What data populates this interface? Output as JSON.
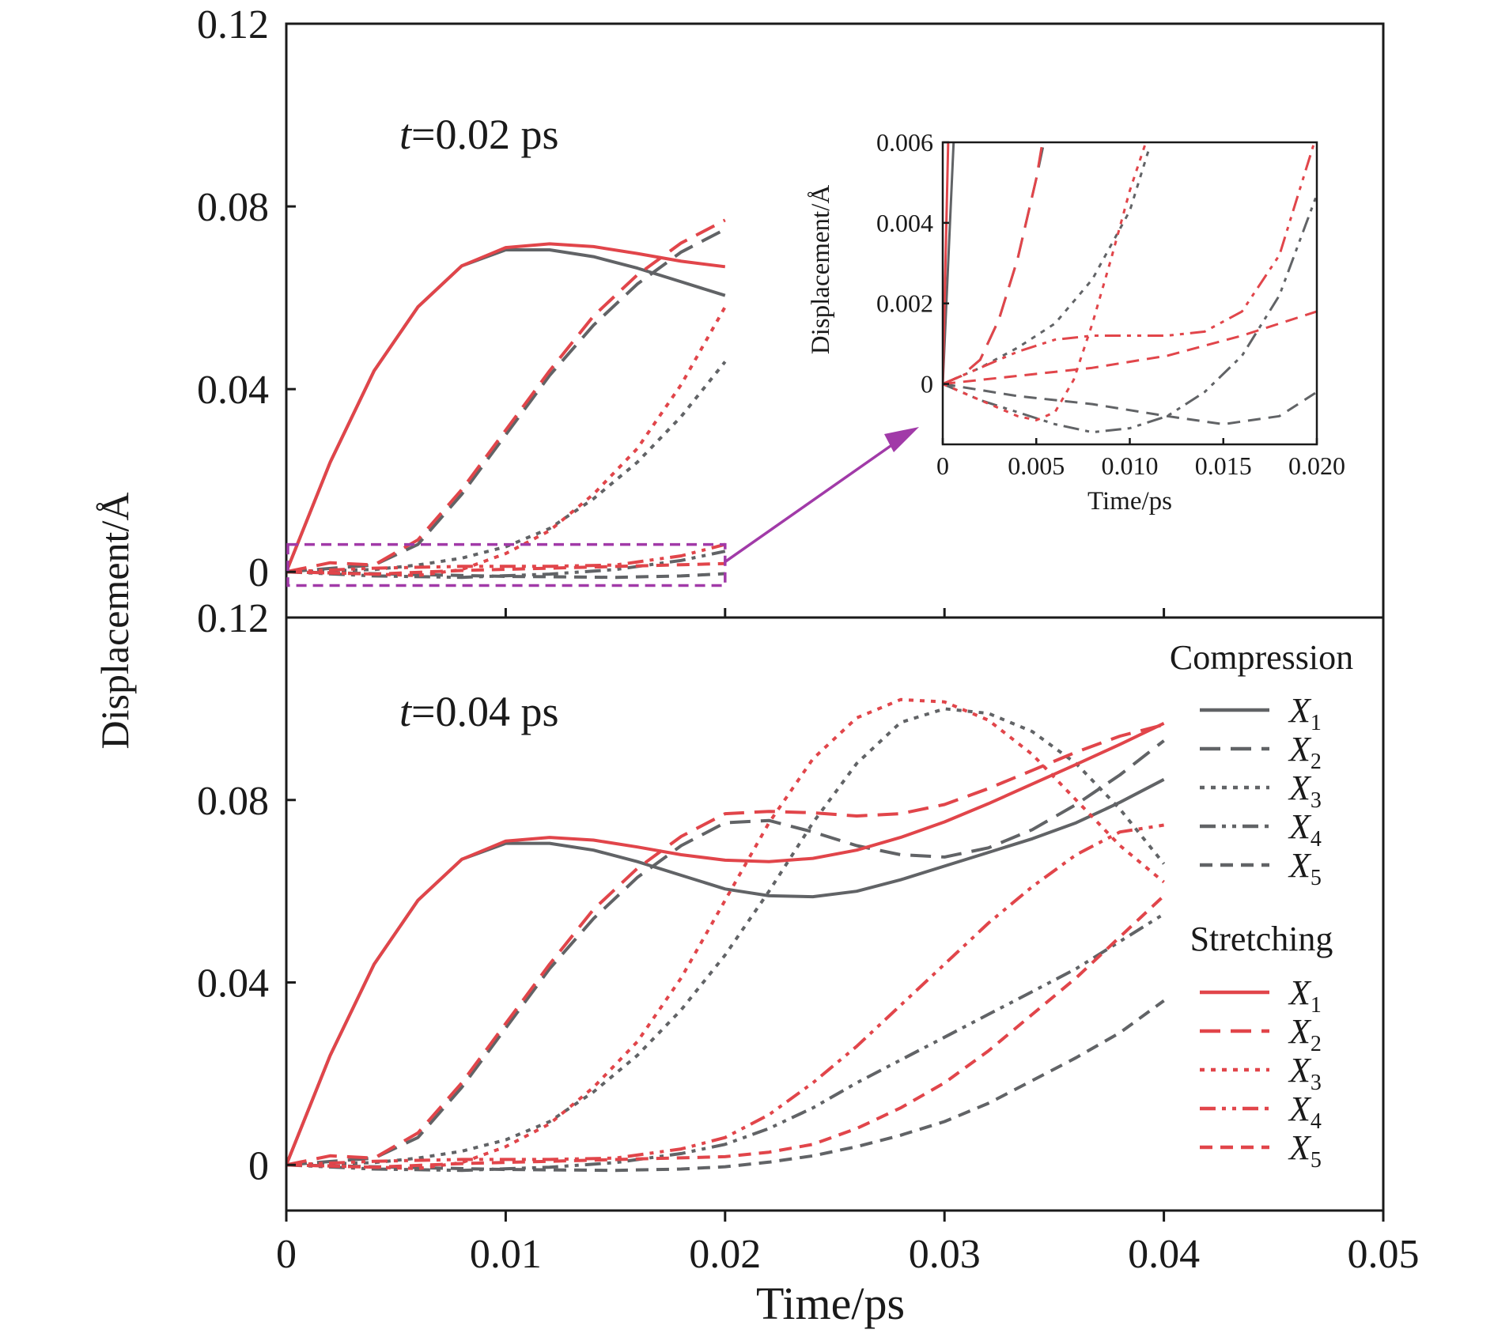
{
  "figure": {
    "ylabel": "Displacement/Å",
    "xlabel": "Time/ps"
  },
  "colors": {
    "compression": "#616366",
    "stretching": "#e1454a",
    "zoom_box": "#a13aa8",
    "axis": "#1a1a1a"
  },
  "legend": {
    "compression_title": "Compression",
    "stretching_title": "Stretching",
    "items": [
      {
        "label": "X",
        "sub": "1",
        "dash": "solid"
      },
      {
        "label": "X",
        "sub": "2",
        "dash": "long-dash"
      },
      {
        "label": "X",
        "sub": "3",
        "dash": "dot"
      },
      {
        "label": "X",
        "sub": "4",
        "dash": "dash-dot-dot"
      },
      {
        "label": "X",
        "sub": "5",
        "dash": "dash"
      }
    ]
  },
  "chart_data": [
    {
      "type": "line",
      "panel": "top",
      "annotation": {
        "italic": "t",
        "text": "=0.02 ps"
      },
      "xlim": [
        0,
        0.05
      ],
      "ylim": [
        -0.01,
        0.12
      ],
      "xticks": [
        0,
        0.01,
        0.02,
        0.03,
        0.04,
        0.05
      ],
      "yticks": [
        0,
        0.04,
        0.08,
        0.12
      ],
      "ytick_labels": [
        "0",
        "0.04",
        "0.08",
        "0.12"
      ],
      "zoom_box": {
        "x": [
          0,
          0.02
        ],
        "y": [
          -0.003,
          0.006
        ]
      },
      "series": [
        {
          "group": "compression",
          "label": "X1",
          "x": [
            0,
            0.002,
            0.004,
            0.006,
            0.008,
            0.01,
            0.012,
            0.014,
            0.016,
            0.018,
            0.02
          ],
          "y": [
            0,
            0.024,
            0.044,
            0.058,
            0.067,
            0.0705,
            0.0705,
            0.069,
            0.0665,
            0.0635,
            0.0605
          ]
        },
        {
          "group": "compression",
          "label": "X2",
          "x": [
            0,
            0.004,
            0.006,
            0.008,
            0.01,
            0.012,
            0.014,
            0.016,
            0.018,
            0.02
          ],
          "y": [
            0,
            0.0015,
            0.006,
            0.017,
            0.03,
            0.043,
            0.054,
            0.063,
            0.07,
            0.075
          ]
        },
        {
          "group": "compression",
          "label": "X3",
          "x": [
            0,
            0.004,
            0.006,
            0.008,
            0.01,
            0.012,
            0.014,
            0.016,
            0.018,
            0.02
          ],
          "y": [
            0,
            0.0005,
            0.0015,
            0.003,
            0.0055,
            0.0095,
            0.016,
            0.024,
            0.034,
            0.046
          ]
        },
        {
          "group": "compression",
          "label": "X4",
          "x": [
            0,
            0.004,
            0.008,
            0.012,
            0.015,
            0.018,
            0.02
          ],
          "y": [
            0,
            -0.0009,
            -0.0012,
            -0.0005,
            0.0005,
            0.0025,
            0.0045
          ]
        },
        {
          "group": "compression",
          "label": "X5",
          "x": [
            0,
            0.005,
            0.01,
            0.015,
            0.018,
            0.02
          ],
          "y": [
            0,
            -0.0005,
            -0.001,
            -0.0012,
            -0.0009,
            -0.0004
          ]
        },
        {
          "group": "stretching",
          "label": "X1",
          "x": [
            0,
            0.002,
            0.004,
            0.006,
            0.008,
            0.01,
            0.012,
            0.014,
            0.016,
            0.018,
            0.02
          ],
          "y": [
            0,
            0.024,
            0.044,
            0.058,
            0.067,
            0.071,
            0.0718,
            0.0712,
            0.0697,
            0.068,
            0.0668
          ]
        },
        {
          "group": "stretching",
          "label": "X2",
          "x": [
            0,
            0.002,
            0.004,
            0.006,
            0.008,
            0.01,
            0.012,
            0.014,
            0.016,
            0.018,
            0.02
          ],
          "y": [
            0,
            0.002,
            0.0015,
            0.007,
            0.018,
            0.031,
            0.044,
            0.056,
            0.065,
            0.072,
            0.077
          ]
        },
        {
          "group": "stretching",
          "label": "X3",
          "x": [
            0,
            0.004,
            0.006,
            0.008,
            0.01,
            0.012,
            0.014,
            0.016,
            0.018,
            0.02
          ],
          "y": [
            0,
            -0.0005,
            -0.0008,
            0.0005,
            0.004,
            0.009,
            0.017,
            0.027,
            0.041,
            0.058
          ]
        },
        {
          "group": "stretching",
          "label": "X4",
          "x": [
            0,
            0.004,
            0.008,
            0.012,
            0.015,
            0.018,
            0.02
          ],
          "y": [
            0,
            0.0008,
            0.0012,
            0.0012,
            0.0015,
            0.0035,
            0.006
          ]
        },
        {
          "group": "stretching",
          "label": "X5",
          "x": [
            0,
            0.004,
            0.008,
            0.012,
            0.016,
            0.02
          ],
          "y": [
            0,
            -0.0005,
            0.0003,
            0.0008,
            0.0013,
            0.0018
          ]
        }
      ]
    },
    {
      "type": "line",
      "panel": "inset",
      "xlabel": "Time/ps",
      "ylabel": "Displacement/Å",
      "xlim": [
        0,
        0.02
      ],
      "ylim": [
        -0.0015,
        0.006
      ],
      "xticks": [
        0,
        0.005,
        0.01,
        0.015,
        0.02
      ],
      "xtick_labels": [
        "0",
        "0.005",
        "0.010",
        "0.015",
        "0.020"
      ],
      "yticks": [
        0,
        0.002,
        0.004,
        0.006
      ],
      "ytick_labels": [
        "0",
        "0.002",
        "0.004",
        "0.006"
      ],
      "series": [
        {
          "group": "compression",
          "label": "X1",
          "x": [
            0,
            0.0006
          ],
          "y": [
            0,
            0.0062
          ]
        },
        {
          "group": "compression",
          "label": "X2",
          "x": [
            0,
            0.001,
            0.002,
            0.003,
            0.004,
            0.005,
            0.0055
          ],
          "y": [
            0,
            0.0002,
            0.0006,
            0.0016,
            0.0031,
            0.0051,
            0.0062
          ]
        },
        {
          "group": "compression",
          "label": "X3",
          "x": [
            0,
            0.002,
            0.004,
            0.006,
            0.008,
            0.01,
            0.011
          ],
          "y": [
            0,
            0.0004,
            0.0009,
            0.0015,
            0.0026,
            0.0043,
            0.0058
          ]
        },
        {
          "group": "compression",
          "label": "X4",
          "x": [
            0,
            0.002,
            0.004,
            0.006,
            0.008,
            0.01,
            0.012,
            0.014,
            0.016,
            0.018,
            0.02
          ],
          "y": [
            0,
            -0.0004,
            -0.0007,
            -0.001,
            -0.0012,
            -0.0011,
            -0.0008,
            -0.0002,
            0.0007,
            0.0022,
            0.0047
          ]
        },
        {
          "group": "compression",
          "label": "X5",
          "x": [
            0,
            0.004,
            0.008,
            0.012,
            0.015,
            0.018,
            0.02
          ],
          "y": [
            0,
            -0.0003,
            -0.0005,
            -0.0008,
            -0.001,
            -0.0008,
            -0.0002
          ]
        },
        {
          "group": "stretching",
          "label": "X1",
          "x": [
            0,
            0.0003
          ],
          "y": [
            0,
            0.0062
          ]
        },
        {
          "group": "stretching",
          "label": "X2",
          "x": [
            0,
            0.001,
            0.002,
            0.003,
            0.004,
            0.005,
            0.0054
          ],
          "y": [
            0,
            0.0002,
            0.0006,
            0.0016,
            0.0031,
            0.0051,
            0.0062
          ]
        },
        {
          "group": "stretching",
          "label": "X3",
          "x": [
            0,
            0.002,
            0.004,
            0.005,
            0.006,
            0.007,
            0.008,
            0.009,
            0.01,
            0.011
          ],
          "y": [
            0,
            -0.0004,
            -0.0008,
            -0.0009,
            -0.0007,
            0.0001,
            0.0015,
            0.0031,
            0.0048,
            0.0062
          ]
        },
        {
          "group": "stretching",
          "label": "X4",
          "x": [
            0,
            0.002,
            0.004,
            0.006,
            0.008,
            0.01,
            0.012,
            0.014,
            0.016,
            0.018,
            0.02
          ],
          "y": [
            0,
            0.0004,
            0.0008,
            0.0011,
            0.0012,
            0.0012,
            0.0012,
            0.0013,
            0.0018,
            0.0032,
            0.0062
          ]
        },
        {
          "group": "stretching",
          "label": "X5",
          "x": [
            0,
            0.004,
            0.008,
            0.012,
            0.016,
            0.02
          ],
          "y": [
            0,
            0.0002,
            0.0004,
            0.0007,
            0.0012,
            0.0018
          ]
        }
      ]
    },
    {
      "type": "line",
      "panel": "bottom",
      "annotation": {
        "italic": "t",
        "text": "=0.04 ps"
      },
      "xlim": [
        0,
        0.05
      ],
      "ylim": [
        -0.01,
        0.12
      ],
      "xticks": [
        0,
        0.01,
        0.02,
        0.03,
        0.04,
        0.05
      ],
      "xtick_labels": [
        "0",
        "0.01",
        "0.02",
        "0.03",
        "0.04",
        "0.05"
      ],
      "yticks": [
        0,
        0.04,
        0.08,
        0.12
      ],
      "ytick_labels": [
        "0",
        "0.04",
        "0.08",
        "0.12"
      ],
      "series": [
        {
          "group": "compression",
          "label": "X1",
          "x": [
            0,
            0.002,
            0.004,
            0.006,
            0.008,
            0.01,
            0.012,
            0.014,
            0.016,
            0.018,
            0.02,
            0.022,
            0.024,
            0.026,
            0.028,
            0.03,
            0.032,
            0.034,
            0.036,
            0.038,
            0.04
          ],
          "y": [
            0,
            0.024,
            0.044,
            0.058,
            0.067,
            0.0705,
            0.0705,
            0.069,
            0.0665,
            0.0635,
            0.0605,
            0.059,
            0.0588,
            0.06,
            0.0625,
            0.0655,
            0.0685,
            0.0715,
            0.075,
            0.0795,
            0.0845
          ]
        },
        {
          "group": "compression",
          "label": "X2",
          "x": [
            0,
            0.004,
            0.006,
            0.008,
            0.01,
            0.012,
            0.014,
            0.016,
            0.018,
            0.02,
            0.022,
            0.024,
            0.026,
            0.028,
            0.03,
            0.032,
            0.034,
            0.036,
            0.038,
            0.04
          ],
          "y": [
            0,
            0.0015,
            0.006,
            0.017,
            0.03,
            0.043,
            0.054,
            0.063,
            0.07,
            0.075,
            0.0755,
            0.073,
            0.07,
            0.068,
            0.0675,
            0.0695,
            0.0735,
            0.079,
            0.0855,
            0.093
          ]
        },
        {
          "group": "compression",
          "label": "X3",
          "x": [
            0,
            0.004,
            0.006,
            0.008,
            0.01,
            0.012,
            0.014,
            0.016,
            0.018,
            0.02,
            0.022,
            0.024,
            0.026,
            0.028,
            0.03,
            0.032,
            0.034,
            0.036,
            0.038,
            0.04
          ],
          "y": [
            0,
            0.0005,
            0.0015,
            0.003,
            0.0055,
            0.0095,
            0.016,
            0.024,
            0.034,
            0.046,
            0.06,
            0.075,
            0.088,
            0.097,
            0.1,
            0.099,
            0.095,
            0.088,
            0.078,
            0.066
          ]
        },
        {
          "group": "compression",
          "label": "X4",
          "x": [
            0,
            0.004,
            0.008,
            0.012,
            0.015,
            0.018,
            0.02,
            0.022,
            0.024,
            0.026,
            0.028,
            0.03,
            0.032,
            0.034,
            0.036,
            0.038,
            0.04
          ],
          "y": [
            0,
            -0.0009,
            -0.0012,
            -0.0005,
            0.0005,
            0.0025,
            0.0045,
            0.008,
            0.0125,
            0.018,
            0.023,
            0.028,
            0.033,
            0.038,
            0.043,
            0.049,
            0.055
          ]
        },
        {
          "group": "compression",
          "label": "X5",
          "x": [
            0,
            0.005,
            0.01,
            0.015,
            0.018,
            0.02,
            0.022,
            0.024,
            0.026,
            0.028,
            0.03,
            0.032,
            0.034,
            0.036,
            0.038,
            0.04
          ],
          "y": [
            0,
            -0.0005,
            -0.001,
            -0.0012,
            -0.0009,
            -0.0004,
            0.0006,
            0.002,
            0.004,
            0.0065,
            0.0095,
            0.0135,
            0.0185,
            0.0235,
            0.029,
            0.036
          ]
        },
        {
          "group": "stretching",
          "label": "X1",
          "x": [
            0,
            0.002,
            0.004,
            0.006,
            0.008,
            0.01,
            0.012,
            0.014,
            0.016,
            0.018,
            0.02,
            0.022,
            0.024,
            0.026,
            0.028,
            0.03,
            0.032,
            0.034,
            0.036,
            0.038,
            0.04
          ],
          "y": [
            0,
            0.024,
            0.044,
            0.058,
            0.067,
            0.071,
            0.0718,
            0.0712,
            0.0697,
            0.068,
            0.0668,
            0.0665,
            0.0672,
            0.069,
            0.0718,
            0.0752,
            0.0792,
            0.0835,
            0.0878,
            0.0922,
            0.0968
          ]
        },
        {
          "group": "stretching",
          "label": "X2",
          "x": [
            0,
            0.002,
            0.004,
            0.006,
            0.008,
            0.01,
            0.012,
            0.014,
            0.016,
            0.018,
            0.02,
            0.022,
            0.024,
            0.026,
            0.028,
            0.03,
            0.032,
            0.034,
            0.036,
            0.038,
            0.04
          ],
          "y": [
            0,
            0.002,
            0.0015,
            0.007,
            0.018,
            0.031,
            0.044,
            0.056,
            0.065,
            0.072,
            0.077,
            0.0775,
            0.0772,
            0.0765,
            0.077,
            0.079,
            0.0825,
            0.0865,
            0.0905,
            0.094,
            0.0965
          ]
        },
        {
          "group": "stretching",
          "label": "X3",
          "x": [
            0,
            0.004,
            0.006,
            0.008,
            0.01,
            0.012,
            0.014,
            0.016,
            0.018,
            0.02,
            0.022,
            0.024,
            0.026,
            0.028,
            0.03,
            0.032,
            0.034,
            0.036,
            0.038,
            0.04
          ],
          "y": [
            0,
            -0.0005,
            -0.0008,
            0.0005,
            0.004,
            0.009,
            0.017,
            0.027,
            0.041,
            0.058,
            0.075,
            0.089,
            0.098,
            0.102,
            0.1015,
            0.0975,
            0.09,
            0.08,
            0.07,
            0.062
          ]
        },
        {
          "group": "stretching",
          "label": "X4",
          "x": [
            0,
            0.004,
            0.008,
            0.012,
            0.015,
            0.018,
            0.02,
            0.022,
            0.024,
            0.026,
            0.028,
            0.03,
            0.032,
            0.034,
            0.036,
            0.038,
            0.04
          ],
          "y": [
            0,
            0.0008,
            0.0012,
            0.0012,
            0.0015,
            0.0035,
            0.006,
            0.011,
            0.018,
            0.026,
            0.035,
            0.044,
            0.053,
            0.061,
            0.068,
            0.073,
            0.0745
          ]
        },
        {
          "group": "stretching",
          "label": "X5",
          "x": [
            0,
            0.004,
            0.008,
            0.012,
            0.016,
            0.02,
            0.022,
            0.024,
            0.026,
            0.028,
            0.03,
            0.032,
            0.034,
            0.036,
            0.038,
            0.04
          ],
          "y": [
            0,
            -0.0005,
            0.0003,
            0.0008,
            0.0013,
            0.0018,
            0.0028,
            0.0045,
            0.008,
            0.0125,
            0.018,
            0.025,
            0.033,
            0.041,
            0.05,
            0.059
          ]
        }
      ]
    }
  ]
}
